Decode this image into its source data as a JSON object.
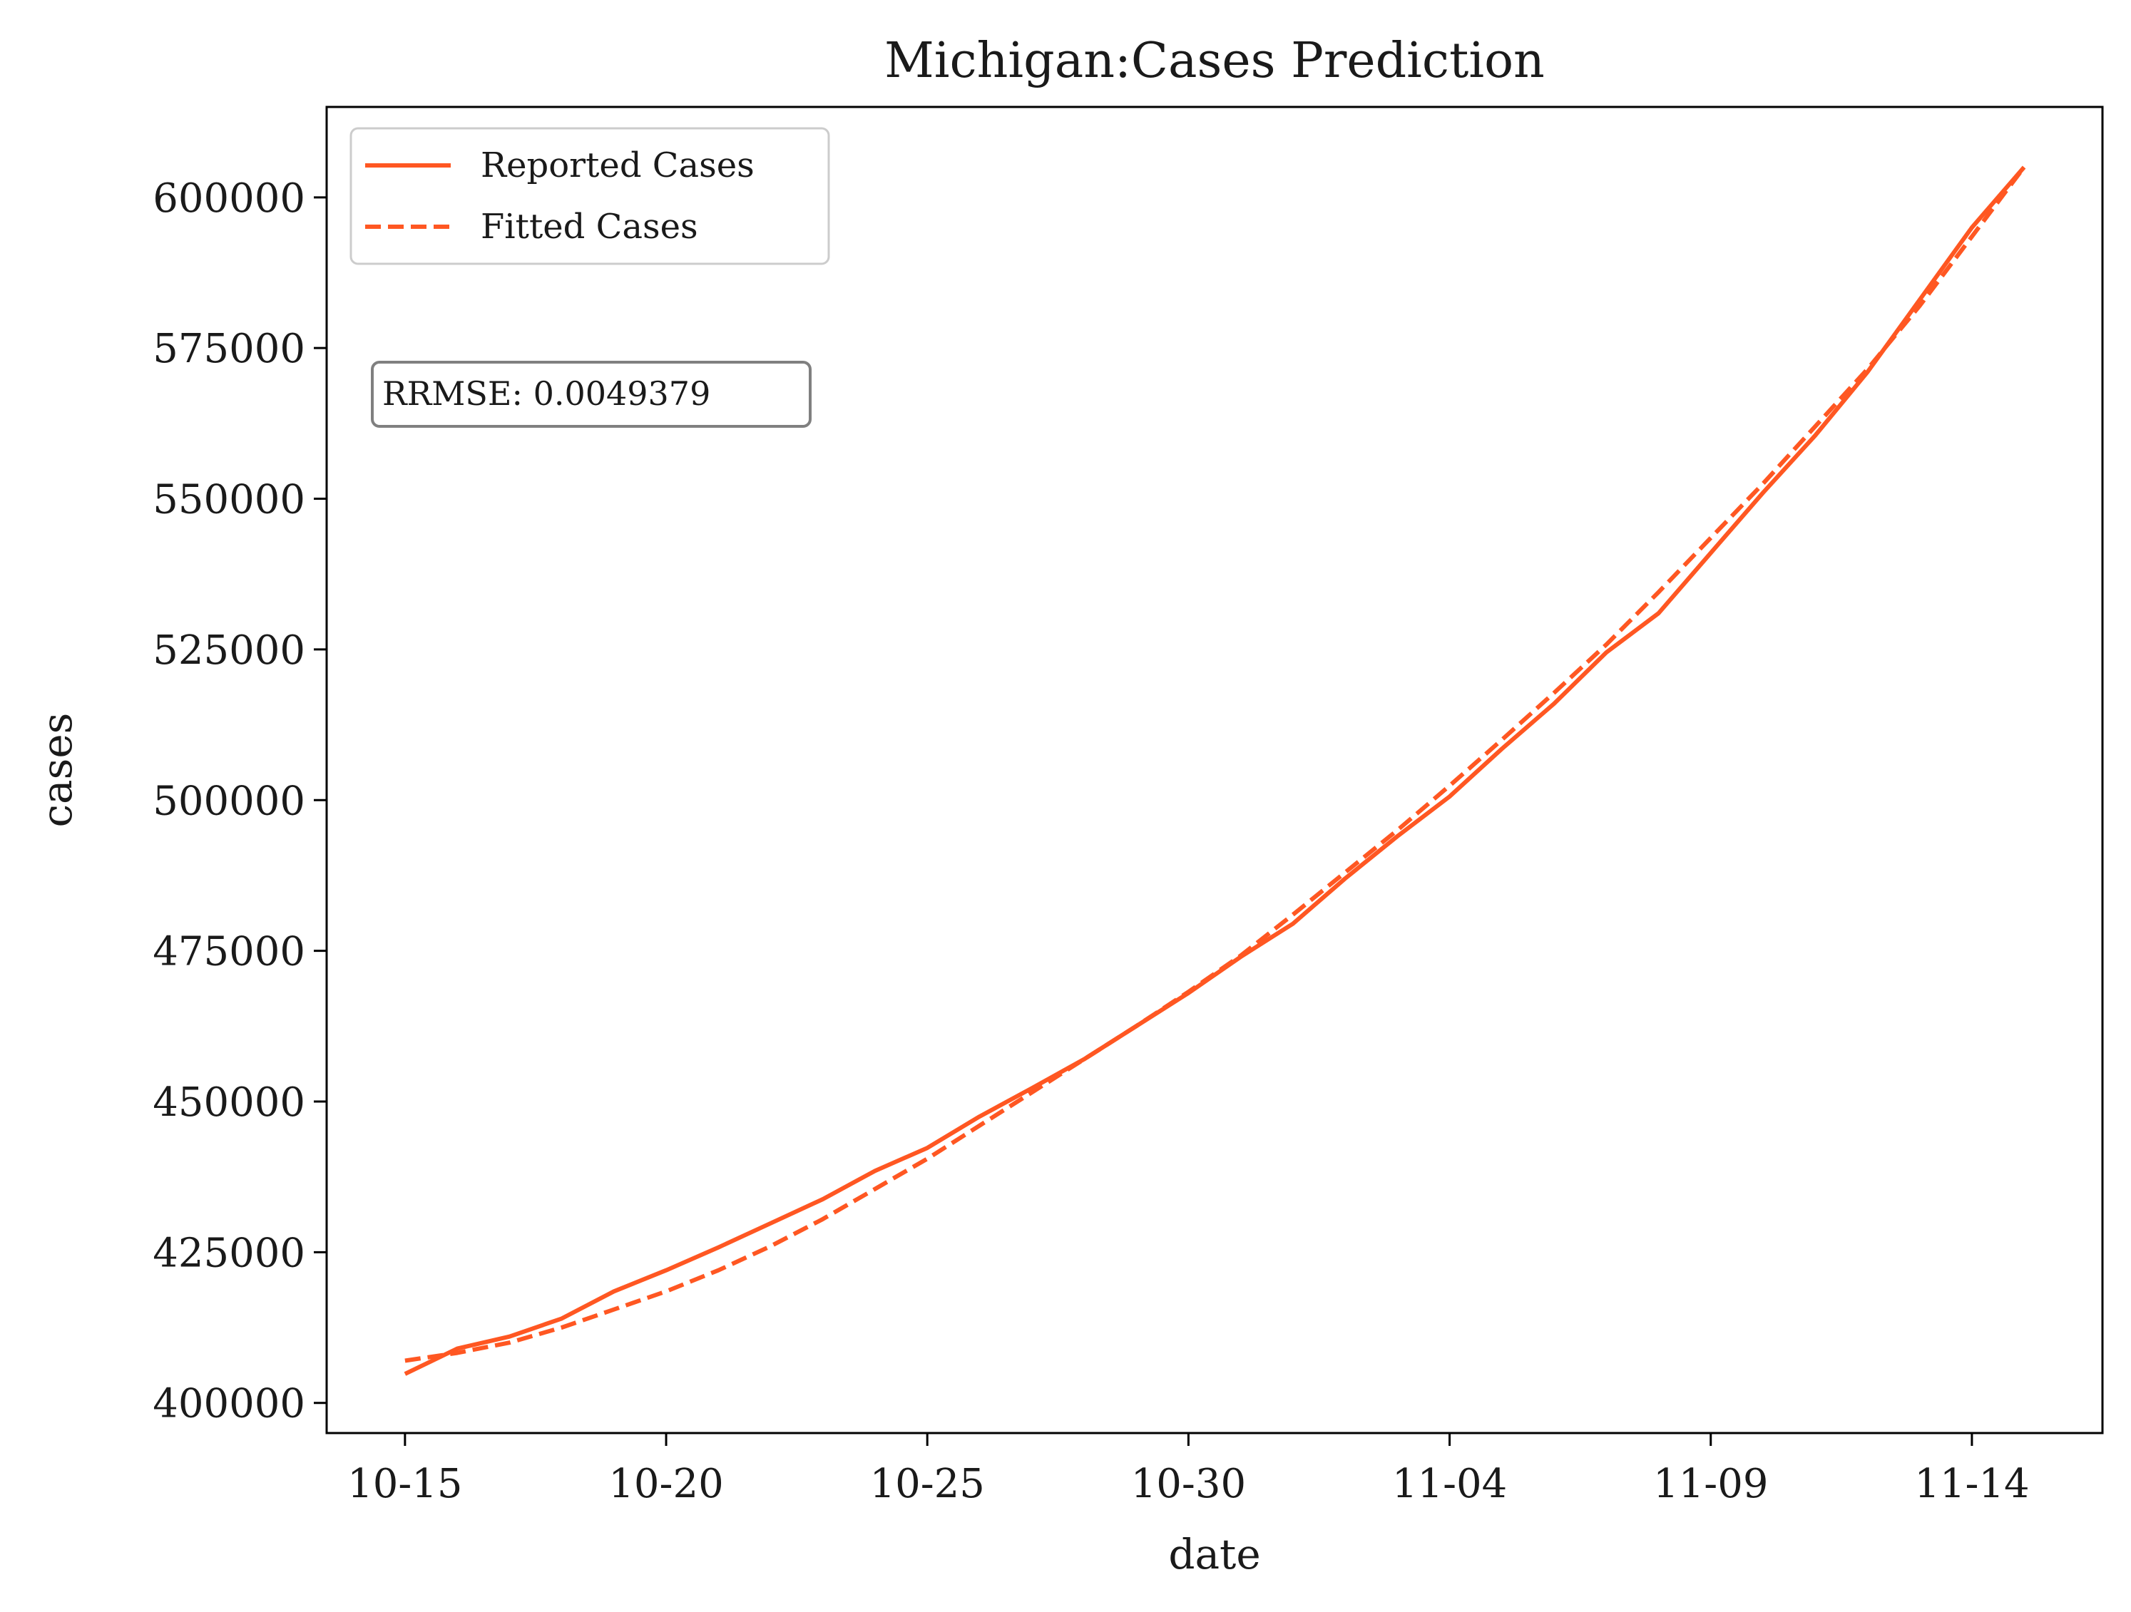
{
  "chart_data": {
    "type": "line",
    "title": "Michigan:Cases Prediction",
    "xlabel": "date",
    "ylabel": "cases",
    "x": [
      "10-15",
      "10-16",
      "10-17",
      "10-18",
      "10-19",
      "10-20",
      "10-21",
      "10-22",
      "10-23",
      "10-24",
      "10-25",
      "10-26",
      "10-27",
      "10-28",
      "10-29",
      "10-30",
      "10-31",
      "11-01",
      "11-02",
      "11-03",
      "11-04",
      "11-05",
      "11-06",
      "11-07",
      "11-08",
      "11-09",
      "11-10",
      "11-11",
      "11-12",
      "11-13",
      "11-14",
      "11-15"
    ],
    "x_ticks": [
      "10-15",
      "10-20",
      "10-25",
      "10-30",
      "11-04",
      "11-09",
      "11-14"
    ],
    "y_ticks": [
      400000,
      425000,
      450000,
      475000,
      500000,
      525000,
      550000,
      575000,
      600000
    ],
    "y_tick_labels": [
      "400000",
      "425000",
      "450000",
      "475000",
      "500000",
      "525000",
      "550000",
      "575000",
      "600000"
    ],
    "ylim": [
      395000,
      615000
    ],
    "xlim": [
      -1.5,
      32.5
    ],
    "series": [
      {
        "name": "Reported Cases",
        "style": "solid",
        "color": "#ff5722",
        "values": [
          404800,
          409000,
          411000,
          414000,
          418500,
          422000,
          425800,
          429800,
          433800,
          438500,
          442300,
          447500,
          452200,
          457000,
          462500,
          468000,
          474000,
          479500,
          487000,
          494000,
          500600,
          508500,
          516000,
          524500,
          531000,
          541000,
          551000,
          560500,
          571000,
          583000,
          595000,
          605000
        ]
      },
      {
        "name": "Fitted Cases",
        "style": "dashed",
        "color": "#ff5722",
        "values": [
          407000,
          408300,
          410000,
          412500,
          415500,
          418500,
          422000,
          426000,
          430500,
          435500,
          440500,
          446000,
          451500,
          457000,
          462500,
          468200,
          474200,
          481000,
          488000,
          495000,
          502400,
          510000,
          517800,
          525800,
          534500,
          543500,
          552500,
          562000,
          571500,
          582000,
          593500,
          605000
        ]
      }
    ],
    "legend": {
      "position": "top-left",
      "entries": [
        "Reported Cases",
        "Fitted Cases"
      ]
    },
    "annotation": "RRMSE: 0.0049379",
    "grid": false
  }
}
